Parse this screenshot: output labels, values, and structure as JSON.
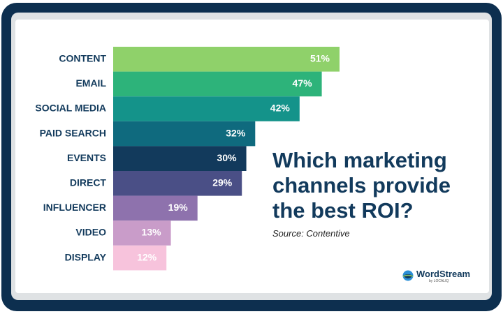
{
  "chart_data": {
    "type": "bar",
    "orientation": "horizontal",
    "title": "Which marketing channels provide the best ROI?",
    "subtitle": "Source: Contentive",
    "categories": [
      "CONTENT",
      "EMAIL",
      "SOCIAL MEDIA",
      "PAID SEARCH",
      "EVENTS",
      "DIRECT",
      "INFLUENCER",
      "VIDEO",
      "DISPLAY"
    ],
    "values": [
      51,
      47,
      42,
      32,
      30,
      29,
      19,
      13,
      12
    ],
    "value_labels": [
      "51%",
      "47%",
      "42%",
      "32%",
      "30%",
      "29%",
      "19%",
      "13%",
      "12%"
    ],
    "colors": [
      "#8fd16a",
      "#2db37a",
      "#14938a",
      "#0f6a7e",
      "#123a5c",
      "#4a4f86",
      "#8e72ad",
      "#c99cc9",
      "#f7c3dc"
    ]
  },
  "logo": {
    "name": "WordStream",
    "byline": "by LOCALIQ"
  }
}
